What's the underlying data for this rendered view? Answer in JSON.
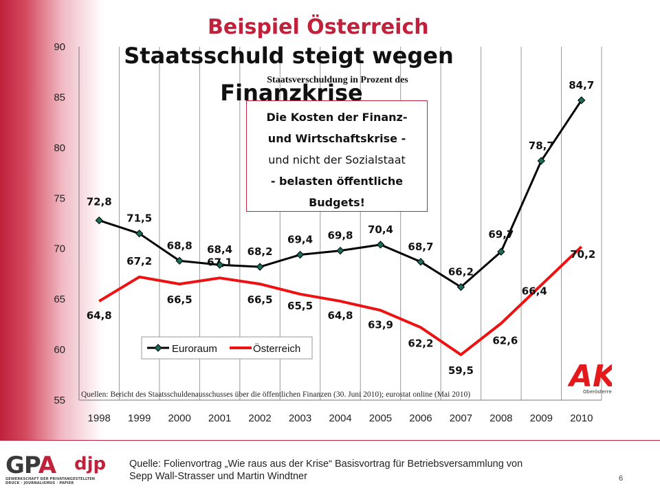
{
  "slide": {
    "title_top": "Beispiel Österreich",
    "title_main": "Staatsschuld steigt wegen",
    "title_main_cut": "Finanzkrise",
    "page_number": "6"
  },
  "callout": {
    "line1": "Die Kosten der Finanz-",
    "line2": "und Wirtschaftskrise -",
    "line3": "und nicht der Sozialstaat",
    "line4": "- belasten öffentliche",
    "line5": "Budgets!"
  },
  "footer": {
    "logo_main": "GP",
    "logo_accent": "A",
    "logo_djp": "djp",
    "logo_sub1": "GEWERKSCHAFT DER PRIVATANGESTELLTEN",
    "logo_sub2": "DRUCK · JOURNALISMUS · PAPIER",
    "source_line1": "Quelle: Folienvortrag „Wie raus aus der Krise“ Basisvortrag für Betriebsversammlung von",
    "source_line2": "Sepp Wall-Strasser und Martin Windtner"
  },
  "ak_logo": {
    "letters": "AK",
    "sub": "Oberösterreich"
  },
  "chart_data": {
    "type": "line",
    "title": "Staatsverschuldung in Prozent des",
    "categories": [
      "1998",
      "1999",
      "2000",
      "2001",
      "2002",
      "2003",
      "2004",
      "2005",
      "2006",
      "2007",
      "2008",
      "2009",
      "2010"
    ],
    "series": [
      {
        "name": "Euroraum",
        "color": "#000000",
        "marker": "diamond",
        "values": [
          72.8,
          71.5,
          68.8,
          68.4,
          68.2,
          69.4,
          69.8,
          70.4,
          68.7,
          66.2,
          69.7,
          78.7,
          84.7
        ],
        "labels": [
          "72,8",
          "71,5",
          "68,8",
          "68,4",
          "68,2",
          "69,4",
          "69,8",
          "70,4",
          "68,7",
          "66,2",
          "69,7",
          "78,7",
          "84,7"
        ]
      },
      {
        "name": "Österreich",
        "color": "#ee1111",
        "marker": "none",
        "values": [
          64.8,
          67.2,
          66.5,
          67.1,
          66.5,
          65.5,
          64.8,
          63.9,
          62.2,
          59.5,
          62.6,
          66.4,
          70.2
        ],
        "labels": [
          "64,8",
          "67,2",
          "66,5",
          "67,1",
          "66,5",
          "65,5",
          "64,8",
          "63,9",
          "62,2",
          "59,5",
          "62,6",
          "66,4",
          "70,2"
        ]
      }
    ],
    "ylim": [
      55,
      90
    ],
    "yticks": [
      55,
      60,
      65,
      70,
      75,
      80,
      85,
      90
    ],
    "ytick_labels": [
      "55",
      "60",
      "65",
      "70",
      "75",
      "80",
      "85",
      "90"
    ],
    "xlabel": "",
    "ylabel": "",
    "grid": "vertical",
    "legend": "bottom-left",
    "source_note": "Quellen: Bericht des Staatsschuldenausschusses über die öffentlichen Finanzen (30. Juni 2010); eurostat online (Mai 2010)"
  }
}
